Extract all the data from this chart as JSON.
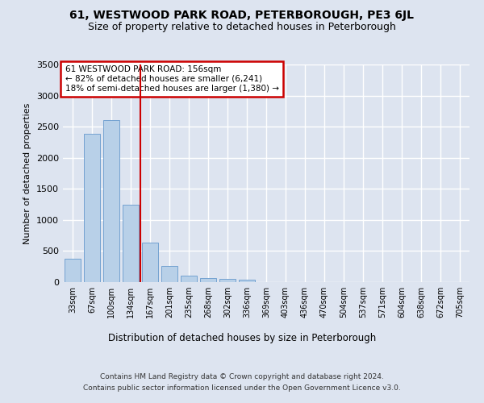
{
  "title_line1": "61, WESTWOOD PARK ROAD, PETERBOROUGH, PE3 6JL",
  "title_line2": "Size of property relative to detached houses in Peterborough",
  "xlabel": "Distribution of detached houses by size in Peterborough",
  "ylabel": "Number of detached properties",
  "footer_line1": "Contains HM Land Registry data © Crown copyright and database right 2024.",
  "footer_line2": "Contains public sector information licensed under the Open Government Licence v3.0.",
  "annotation_line1": "61 WESTWOOD PARK ROAD: 156sqm",
  "annotation_line2": "← 82% of detached houses are smaller (6,241)",
  "annotation_line3": "18% of semi-detached houses are larger (1,380) →",
  "bar_labels": [
    "33sqm",
    "67sqm",
    "100sqm",
    "134sqm",
    "167sqm",
    "201sqm",
    "235sqm",
    "268sqm",
    "302sqm",
    "336sqm",
    "369sqm",
    "403sqm",
    "436sqm",
    "470sqm",
    "504sqm",
    "537sqm",
    "571sqm",
    "604sqm",
    "638sqm",
    "672sqm",
    "705sqm"
  ],
  "bar_values": [
    380,
    2390,
    2600,
    1250,
    640,
    260,
    100,
    60,
    55,
    40,
    5,
    5,
    0,
    0,
    0,
    0,
    0,
    0,
    0,
    0,
    0
  ],
  "bar_color": "#b8d0e8",
  "bar_edge_color": "#6699cc",
  "vline_x": 3.5,
  "vline_color": "#cc0000",
  "ylim": [
    0,
    3500
  ],
  "yticks": [
    0,
    500,
    1000,
    1500,
    2000,
    2500,
    3000,
    3500
  ],
  "background_color": "#dde4f0",
  "plot_bg_color": "#dde4f0",
  "grid_color": "#ffffff",
  "annotation_box_color": "#ffffff",
  "annotation_box_edge": "#cc0000",
  "title_fontsize": 10,
  "subtitle_fontsize": 9
}
